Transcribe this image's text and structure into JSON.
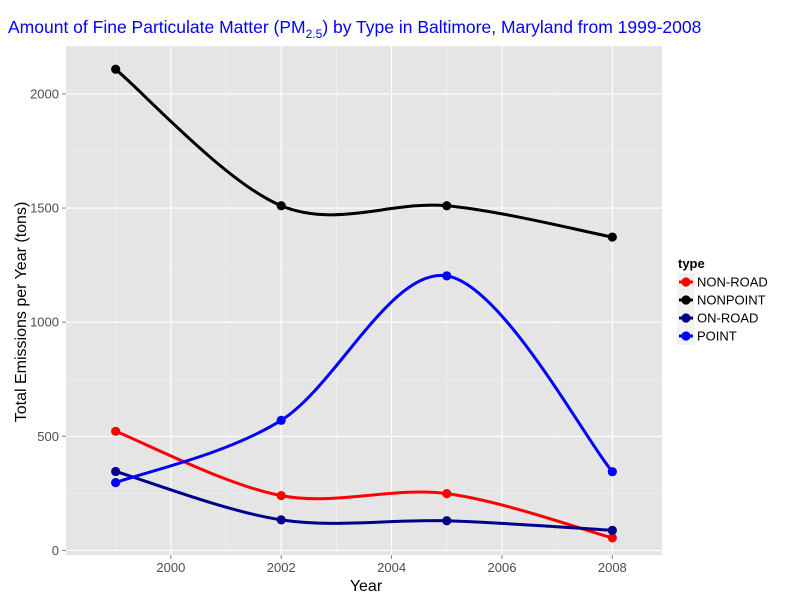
{
  "chart_data": {
    "type": "line",
    "title": {
      "prefix": "Amount of Fine Particulate Matter (PM",
      "subscript": "2.5",
      "suffix": ") by Type in Baltimore, Maryland from 1999-2008"
    },
    "xlabel": "Year",
    "ylabel": "Total Emissions per Year (tons)",
    "x": [
      1999,
      2002,
      2005,
      2008
    ],
    "xlim": [
      1998.1,
      2008.9
    ],
    "ylim": [
      -20,
      2210
    ],
    "xticks": [
      2000,
      2002,
      2004,
      2006,
      2008
    ],
    "yticks": [
      0,
      500,
      1000,
      1500,
      2000
    ],
    "grid": true,
    "legend": {
      "title": "type",
      "placement": "right"
    },
    "series": [
      {
        "name": "NON-ROAD",
        "color": "#ff0000",
        "values": [
          522,
          240,
          249,
          55
        ]
      },
      {
        "name": "NONPOINT",
        "color": "#000000",
        "values": [
          2108,
          1510,
          1510,
          1373
        ]
      },
      {
        "name": "ON-ROAD",
        "color": "#00008b",
        "values": [
          346,
          134,
          130,
          88
        ]
      },
      {
        "name": "POINT",
        "color": "#0000ff",
        "values": [
          297,
          570,
          1203,
          345
        ]
      }
    ]
  }
}
